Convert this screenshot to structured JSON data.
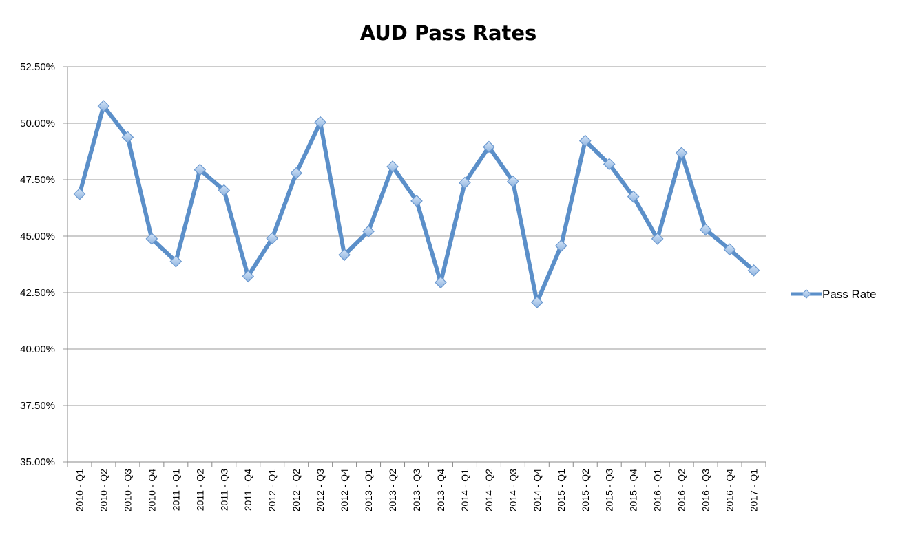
{
  "chart_data": {
    "type": "line",
    "title": "AUD Pass Rates",
    "categories": [
      "2010 - Q1",
      "2010 - Q2",
      "2010 - Q3",
      "2010 - Q4",
      "2011 - Q1",
      "2011 - Q2",
      "2011 - Q3",
      "2011 - Q4",
      "2012 - Q1",
      "2012 - Q2",
      "2012 - Q3",
      "2012 - Q4",
      "2013 - Q1",
      "2013 - Q2",
      "2013 - Q3",
      "2013 - Q4",
      "2014 - Q1",
      "2014 - Q2",
      "2014 - Q3",
      "2014 - Q4",
      "2015 - Q1",
      "2015 - Q2",
      "2015 - Q3",
      "2015 - Q4",
      "2016 - Q1",
      "2016 - Q2",
      "2016 - Q3",
      "2016 - Q4",
      "2017 - Q1"
    ],
    "series": [
      {
        "name": "Pass Rate",
        "color": "#5b8fc9",
        "values": [
          46.86,
          50.76,
          49.38,
          44.88,
          43.88,
          47.94,
          47.03,
          43.22,
          44.9,
          47.79,
          50.04,
          44.17,
          45.21,
          48.08,
          46.56,
          42.95,
          47.36,
          48.95,
          47.42,
          42.07,
          44.57,
          49.22,
          48.19,
          46.75,
          44.88,
          48.68,
          45.29,
          44.41,
          43.48
        ]
      }
    ],
    "ylim": [
      35,
      52.5
    ],
    "yticks": [
      "35.00%",
      "37.50%",
      "40.00%",
      "42.50%",
      "45.00%",
      "47.50%",
      "50.00%",
      "52.50%"
    ],
    "ytick_values": [
      35,
      37.5,
      40,
      42.5,
      45,
      47.5,
      50,
      52.5
    ],
    "grid": true,
    "legend": "right",
    "xlabel": "",
    "ylabel": ""
  }
}
